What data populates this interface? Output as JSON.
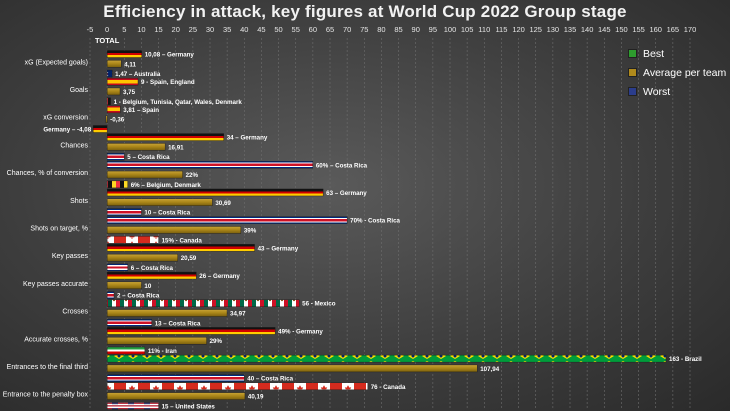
{
  "chart_data": {
    "type": "bar",
    "orientation": "horizontal",
    "title": "Efficiency in attack, key figures at World Cup 2022 Group stage",
    "xlabel": "TOTAL",
    "xlim": [
      -5,
      170
    ],
    "xticks": [
      -5,
      0,
      5,
      10,
      15,
      20,
      25,
      30,
      35,
      40,
      45,
      50,
      55,
      60,
      65,
      70,
      75,
      80,
      85,
      90,
      95,
      100,
      105,
      110,
      115,
      120,
      125,
      130,
      135,
      140,
      145,
      150,
      155,
      160,
      165,
      170
    ],
    "legend": [
      {
        "name": "Best",
        "color": "#2e9c2e"
      },
      {
        "name": "Average per team",
        "color": "#b08a1c"
      },
      {
        "name": "Worst",
        "color": "#2b3d8c"
      }
    ],
    "categories": [
      "xG (Expected goals)",
      "Goals",
      "xG conversion",
      "Chances",
      "Chances, % of conversion",
      "Shots",
      "Shots on target, %",
      "Key passes",
      "Key passes accurate",
      "Crosses",
      "Accurate crosses, %",
      "Entrances to the final third",
      "Entrance to the penalty box"
    ],
    "series": [
      {
        "name": "Best",
        "values": [
          10.08,
          9,
          3.81,
          34,
          60,
          63,
          70,
          43,
          26,
          56,
          49,
          163,
          76
        ],
        "labels": [
          "10,08 – Germany",
          "9 - Spain, England",
          "3,81 – Spain",
          "34 – Germany",
          "60% – Costa Rica",
          "63 – Germany",
          "70% - Costa Rica",
          "43 – Germany",
          "26 – Germany",
          "56 - Mexico",
          "49% - Germany",
          "163 - Brazil",
          "76 - Canada"
        ],
        "styles": [
          "germany",
          "spain",
          "spain",
          "germany",
          "costarica",
          "germany",
          "costarica",
          "germany",
          "germany",
          "mexico",
          "germany",
          "brazil",
          "canada"
        ]
      },
      {
        "name": "Average per team",
        "values": [
          4.11,
          3.75,
          -0.36,
          16.91,
          22,
          30.69,
          39,
          20.59,
          10,
          34.97,
          29,
          107.94,
          40.19
        ],
        "labels": [
          "4,11",
          "3,75",
          "-0,36",
          "16,91",
          "22%",
          "30,69",
          "39%",
          "20,59",
          "10",
          "34,97",
          "29%",
          "107,94",
          "40,19"
        ],
        "styles": [
          "avg",
          "avg",
          "avg",
          "avg",
          "avg",
          "avg",
          "avg",
          "avg",
          "avg",
          "avg",
          "avg",
          "avg",
          "avg"
        ]
      },
      {
        "name": "Worst",
        "values": [
          1.47,
          1,
          -4.08,
          5,
          6,
          10,
          15,
          6,
          2,
          13,
          11,
          40,
          15
        ],
        "labels": [
          "1,47 – Australia",
          "1 - Belgium, Tunisia, Qatar, Wales, Denmark",
          "Germany – -4,08",
          "5 – Costa Rica",
          "6% – Belgium, Denmark",
          "10 – Costa Rica",
          "15% - Canada",
          "6 – Costa Rica",
          "2 – Costa Rica",
          "13 – Costa Rica",
          "11% - Iran",
          "40 – Costa Rica",
          "15 – United States"
        ],
        "styles": [
          "australia",
          "belgium",
          "germany",
          "costarica",
          "belgium",
          "costarica",
          "canada",
          "costarica",
          "costarica",
          "costarica",
          "iran",
          "costarica",
          "usa"
        ]
      }
    ]
  }
}
